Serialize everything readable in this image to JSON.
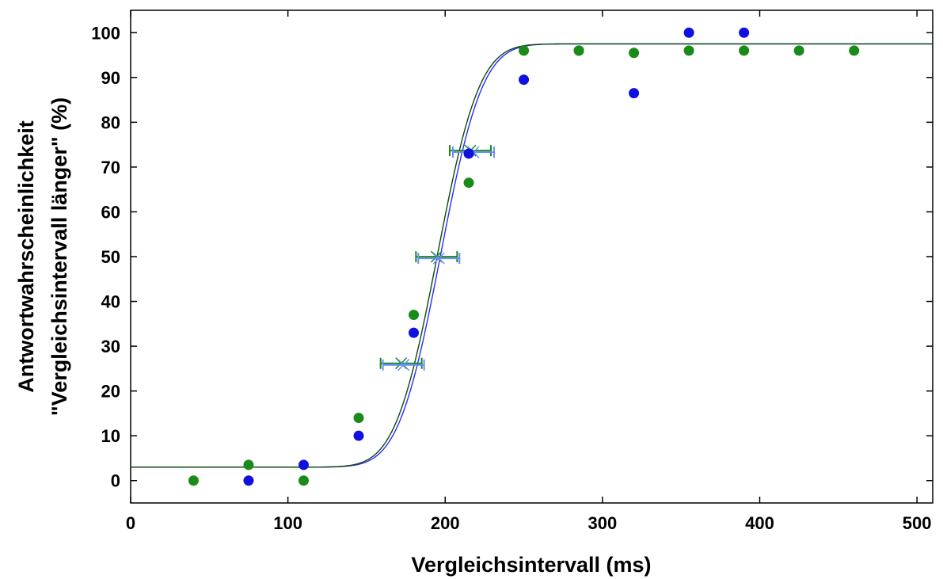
{
  "chart_data": {
    "type": "scatter",
    "title": "",
    "xlabel": "Vergleichsintervall (ms)",
    "ylabel_lines": [
      "Antwortwahrscheinlichkeit",
      "\"Vergleichsintervall länger\" (%)"
    ],
    "xlim": [
      0,
      510
    ],
    "ylim": [
      -5,
      105
    ],
    "xticks": [
      0,
      100,
      200,
      300,
      400,
      500
    ],
    "yticks": [
      0,
      10,
      20,
      30,
      40,
      50,
      60,
      70,
      80,
      90,
      100
    ],
    "grid": false,
    "legend": "none",
    "series": [
      {
        "color": "#1010e0",
        "x": [
          75,
          110,
          145,
          180,
          215,
          250,
          285,
          320,
          355,
          390
        ],
        "y": [
          0,
          3.5,
          10,
          33,
          73,
          89.5,
          96,
          86.5,
          100,
          100
        ]
      },
      {
        "color": "#1a8a1a",
        "x": [
          40,
          75,
          110,
          145,
          180,
          215,
          250,
          285,
          320,
          355,
          390,
          425,
          460
        ],
        "y": [
          0,
          3.5,
          0,
          14,
          37,
          66.5,
          96,
          96,
          95.5,
          96,
          96,
          96,
          96
        ]
      }
    ],
    "fit_curves": [
      {
        "color": "#2b2bff",
        "guess": 3,
        "lapse": 2.5,
        "mu": 197,
        "sigma": 21
      },
      {
        "color": "#0c4a0c",
        "guess": 3,
        "lapse": 2.5,
        "mu": 195,
        "sigma": 21
      }
    ],
    "threshold_markers": [
      {
        "y": 26,
        "x_blue": 173.5,
        "x_green": 172
      },
      {
        "y": 49.8,
        "x_blue": 196,
        "x_green": 194.5
      },
      {
        "y": 73.5,
        "x_blue": 218,
        "x_green": 216
      }
    ]
  }
}
